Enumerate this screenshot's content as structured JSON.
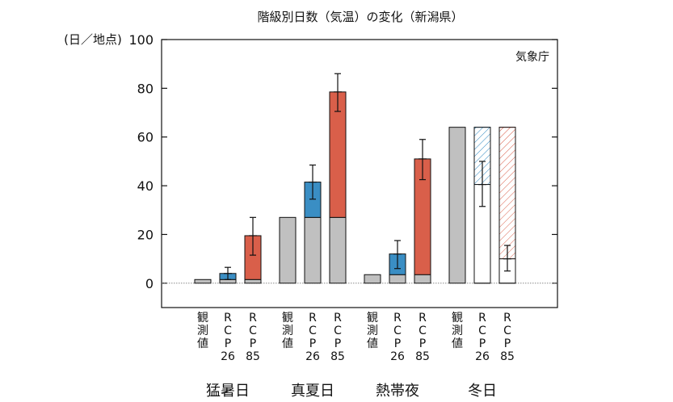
{
  "chart_data": {
    "type": "bar",
    "title": "階級別日数（気温）の変化（新潟県）",
    "ylabel": "(日／地点)",
    "credit": "気象庁",
    "ylim": [
      -10,
      100
    ],
    "yticks": [
      0,
      20,
      40,
      60,
      80,
      100
    ],
    "groups": [
      {
        "name": "猛暑日",
        "bars": [
          {
            "label": [
              "観",
              "測",
              "値"
            ],
            "kind": "observed",
            "base": 1.5,
            "value": 1.5
          },
          {
            "label": [
              "R",
              "C",
              "P",
              "26"
            ],
            "kind": "increase",
            "base": 1.5,
            "value": 4,
            "error": [
              1.5,
              6.5
            ]
          },
          {
            "label": [
              "R",
              "C",
              "P",
              "85"
            ],
            "kind": "increase",
            "base": 1.5,
            "value": 19.5,
            "error": [
              11.5,
              27
            ]
          }
        ]
      },
      {
        "name": "真夏日",
        "bars": [
          {
            "label": [
              "観",
              "測",
              "値"
            ],
            "kind": "observed",
            "base": 27,
            "value": 27
          },
          {
            "label": [
              "R",
              "C",
              "P",
              "26"
            ],
            "kind": "increase",
            "base": 27,
            "value": 41.5,
            "error": [
              34.5,
              48.5
            ]
          },
          {
            "label": [
              "R",
              "C",
              "P",
              "85"
            ],
            "kind": "increase",
            "base": 27,
            "value": 78.5,
            "error": [
              70.5,
              86
            ]
          }
        ]
      },
      {
        "name": "熱帯夜",
        "bars": [
          {
            "label": [
              "観",
              "測",
              "値"
            ],
            "kind": "observed",
            "base": 3.5,
            "value": 3.5
          },
          {
            "label": [
              "R",
              "C",
              "P",
              "26"
            ],
            "kind": "increase",
            "base": 3.5,
            "value": 12,
            "error": [
              6,
              17.5
            ]
          },
          {
            "label": [
              "R",
              "C",
              "P",
              "85"
            ],
            "kind": "increase",
            "base": 3.5,
            "value": 51,
            "error": [
              42.5,
              59
            ]
          }
        ]
      },
      {
        "name": "冬日",
        "bars": [
          {
            "label": [
              "観",
              "測",
              "値"
            ],
            "kind": "observed",
            "base": 64,
            "value": 64
          },
          {
            "label": [
              "R",
              "C",
              "P",
              "26"
            ],
            "kind": "decrease",
            "base": 64,
            "value": 40.5,
            "error": [
              31.5,
              50
            ]
          },
          {
            "label": [
              "R",
              "C",
              "P",
              "85"
            ],
            "kind": "decrease",
            "base": 64,
            "value": 10,
            "error": [
              5,
              15.5
            ]
          }
        ]
      }
    ],
    "colors": {
      "observed": "#c0c0c0",
      "rcp26": "#3a8ec4",
      "rcp85": "#d95f4a",
      "frame": "#111111"
    }
  }
}
